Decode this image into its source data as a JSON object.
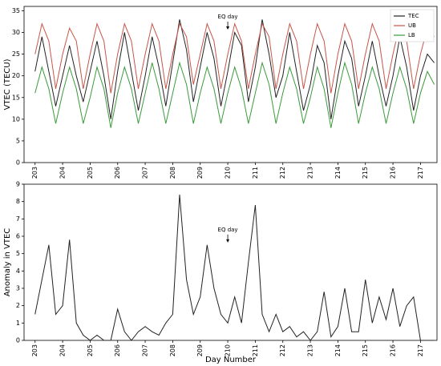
{
  "chart_data": [
    {
      "type": "line",
      "ylabel": "VTEC (TECU)",
      "x": [
        203,
        203.25,
        203.5,
        203.75,
        204,
        204.25,
        204.5,
        204.75,
        205,
        205.25,
        205.5,
        205.75,
        206,
        206.25,
        206.5,
        206.75,
        207,
        207.25,
        207.5,
        207.75,
        208,
        208.25,
        208.5,
        208.75,
        209,
        209.25,
        209.5,
        209.75,
        210,
        210.25,
        210.5,
        210.75,
        211,
        211.25,
        211.5,
        211.75,
        212,
        212.25,
        212.5,
        212.75,
        213,
        213.25,
        213.5,
        213.75,
        214,
        214.25,
        214.5,
        214.75,
        215,
        215.25,
        215.5,
        215.75,
        216,
        216.25,
        216.5,
        216.75,
        217,
        217.25,
        217.5
      ],
      "series": [
        {
          "name": "TEC",
          "color": "#222222",
          "values": [
            21,
            29,
            21,
            13,
            20,
            27,
            20,
            14,
            21,
            28,
            20,
            10,
            21,
            30,
            21,
            12,
            20,
            29,
            22,
            13,
            23,
            33,
            26,
            14,
            22,
            30,
            24,
            13,
            21,
            30,
            27,
            14,
            22,
            33,
            25,
            15,
            20,
            30,
            21,
            12,
            18,
            27,
            23,
            10,
            20,
            28,
            24,
            13,
            20,
            28,
            20,
            13,
            20,
            29,
            22,
            12,
            20,
            25,
            23
          ]
        },
        {
          "name": "UB",
          "color": "#c8554a",
          "values": [
            25,
            32,
            28,
            17,
            25,
            31,
            28,
            17,
            25,
            32,
            28,
            16,
            25,
            32,
            28,
            17,
            25,
            32,
            28,
            17,
            25,
            32,
            29,
            18,
            25,
            32,
            28,
            17,
            25,
            32,
            28,
            17,
            25,
            32,
            29,
            17,
            25,
            32,
            28,
            17,
            25,
            32,
            28,
            16,
            25,
            32,
            28,
            17,
            25,
            32,
            28,
            17,
            25,
            32,
            28,
            17,
            25,
            31,
            29
          ]
        },
        {
          "name": "LB",
          "color": "#3a9a3a",
          "values": [
            16,
            22,
            17,
            9,
            16,
            22,
            17,
            9,
            15,
            22,
            17,
            8,
            16,
            22,
            17,
            9,
            16,
            23,
            17,
            9,
            16,
            23,
            18,
            9,
            16,
            22,
            17,
            9,
            16,
            22,
            17,
            9,
            16,
            23,
            18,
            9,
            16,
            22,
            17,
            9,
            15,
            22,
            17,
            8,
            16,
            23,
            18,
            9,
            16,
            22,
            17,
            9,
            16,
            22,
            17,
            9,
            16,
            21,
            18
          ]
        }
      ],
      "xlim": [
        202.6,
        217.6
      ],
      "ylim": [
        0,
        36
      ],
      "xticks": [
        203,
        204,
        205,
        206,
        207,
        208,
        209,
        210,
        211,
        212,
        213,
        214,
        215,
        216,
        217
      ],
      "yticks": [
        0,
        5,
        10,
        15,
        20,
        25,
        30,
        35
      ],
      "legend": "upper right",
      "annotations": [
        {
          "text": "EQ day",
          "x": 210,
          "y": 32.5
        }
      ]
    },
    {
      "type": "line",
      "ylabel": "Anomaly in VTEC",
      "xlabel": "Day Number",
      "x": [
        203,
        203.25,
        203.5,
        203.75,
        204,
        204.25,
        204.5,
        204.75,
        205,
        205.25,
        205.5,
        205.75,
        206,
        206.25,
        206.5,
        206.75,
        207,
        207.25,
        207.5,
        207.75,
        208,
        208.25,
        208.5,
        208.75,
        209,
        209.25,
        209.5,
        209.75,
        210,
        210.25,
        210.5,
        210.75,
        211,
        211.25,
        211.5,
        211.75,
        212,
        212.25,
        212.5,
        212.75,
        213,
        213.25,
        213.5,
        213.75,
        214,
        214.25,
        214.5,
        214.75,
        215,
        215.25,
        215.5,
        215.75,
        216,
        216.25,
        216.5,
        216.75,
        217,
        217.25,
        217.5
      ],
      "series": [
        {
          "name": "Anomaly",
          "color": "#222222",
          "values": [
            1.5,
            3.5,
            5.5,
            1.5,
            2,
            5.8,
            1,
            0.3,
            0,
            0.3,
            0,
            0,
            1.8,
            0.5,
            0,
            0.5,
            0.8,
            0.5,
            0.3,
            1,
            1.5,
            8.4,
            3.5,
            1.5,
            2.5,
            5.5,
            3,
            1.5,
            1,
            2.5,
            1,
            4.5,
            7.8,
            1.5,
            0.5,
            1.5,
            0.5,
            0.8,
            0.2,
            0.5,
            0,
            0.5,
            2.8,
            0.2,
            0.8,
            3,
            0.5,
            0.5,
            3.5,
            1,
            2.5,
            1.2,
            3,
            0.8,
            2,
            2.5,
            0,
            0,
            0
          ]
        }
      ],
      "xlim": [
        202.6,
        217.6
      ],
      "ylim": [
        0,
        9
      ],
      "xticks": [
        203,
        204,
        205,
        206,
        207,
        208,
        209,
        210,
        211,
        212,
        213,
        214,
        215,
        216,
        217
      ],
      "yticks": [
        0,
        1,
        2,
        3,
        4,
        5,
        6,
        7,
        8,
        9
      ],
      "annotations": [
        {
          "text": "EQ day",
          "x": 210,
          "y": 6.1
        }
      ]
    }
  ]
}
